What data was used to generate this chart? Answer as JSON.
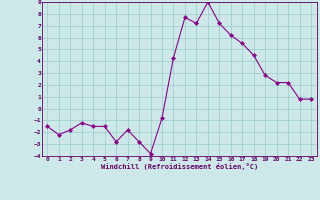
{
  "x": [
    0,
    1,
    2,
    3,
    4,
    5,
    6,
    7,
    8,
    9,
    10,
    11,
    12,
    13,
    14,
    15,
    16,
    17,
    18,
    19,
    20,
    21,
    22,
    23
  ],
  "y": [
    -1.5,
    -2.2,
    -1.8,
    -1.2,
    -1.5,
    -1.5,
    -2.8,
    -1.8,
    -2.8,
    -3.8,
    -0.8,
    4.3,
    7.7,
    7.2,
    9.0,
    7.2,
    6.2,
    5.5,
    4.5,
    2.8,
    2.2,
    2.2,
    0.8,
    0.8
  ],
  "xlabel": "Windchill (Refroidissement éolien,°C)",
  "ylim": [
    -4,
    9
  ],
  "xlim": [
    -0.5,
    23.5
  ],
  "yticks": [
    -4,
    -3,
    -2,
    -1,
    0,
    1,
    2,
    3,
    4,
    5,
    6,
    7,
    8,
    9
  ],
  "xticks": [
    0,
    1,
    2,
    3,
    4,
    5,
    6,
    7,
    8,
    9,
    10,
    11,
    12,
    13,
    14,
    15,
    16,
    17,
    18,
    19,
    20,
    21,
    22,
    23
  ],
  "line_color": "#8B008B",
  "marker_color": "#8B008B",
  "bg_color": "#cce8e8",
  "grid_color": "#99cccc",
  "spine_color": "#660066",
  "label_color": "#660066",
  "tick_color": "#660066"
}
